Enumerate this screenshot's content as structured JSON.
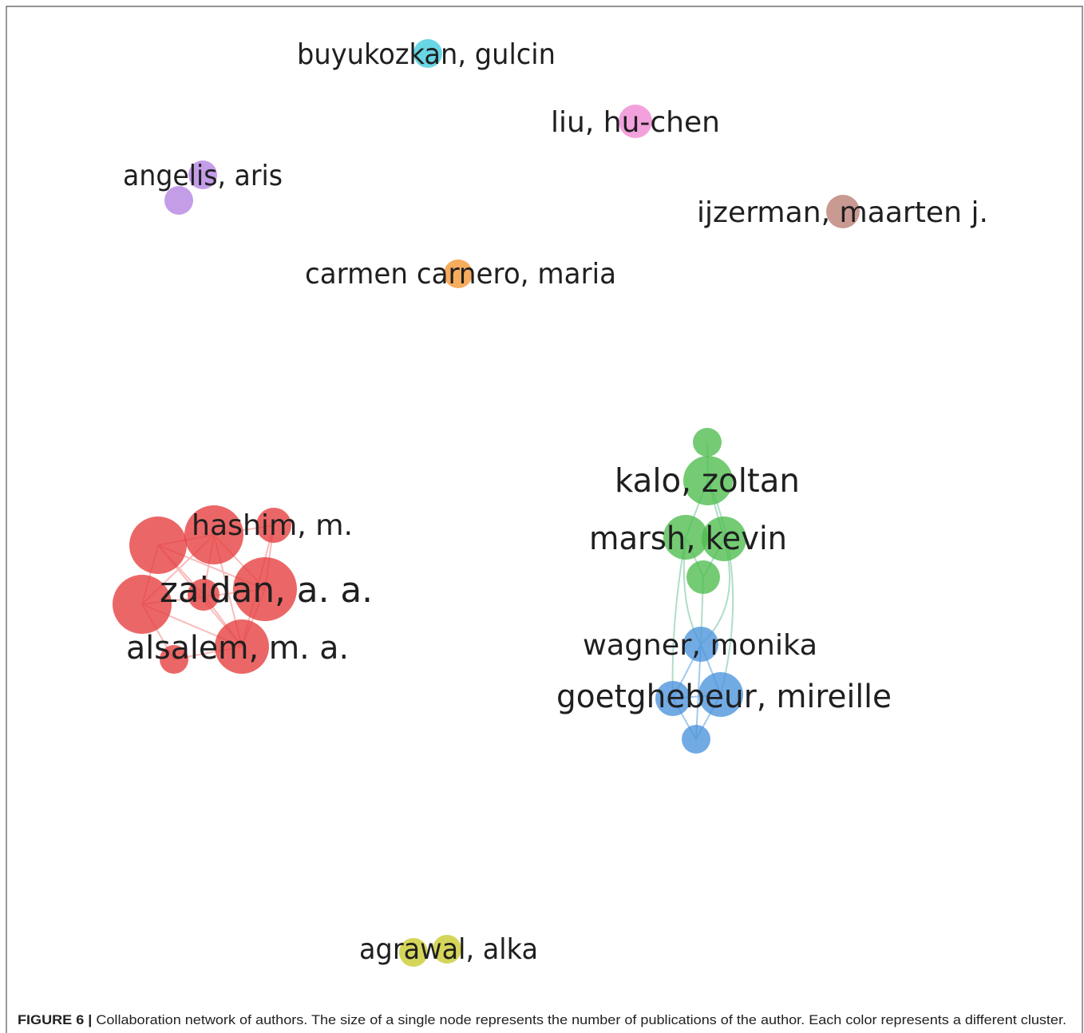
{
  "labels": [
    "buyukozkan, gulcin",
    "liu, hu-chen",
    "angelis, aris",
    "ijzerman, maarten j.",
    "carmen carnero, maria",
    "kalo, zoltan",
    "marsh, kevin",
    "hashim, m.",
    "zaidan, a. a.",
    "alsalem, m. a.",
    "wagner, monika",
    "goetghebeur, mireille",
    "agrawal, alka"
  ],
  "caption": {
    "prefix": "FIGURE 6 |",
    "text": "Collaboration network of authors. The size of a single node represents the number of publications of the author. Each color represents a different cluster."
  }
}
